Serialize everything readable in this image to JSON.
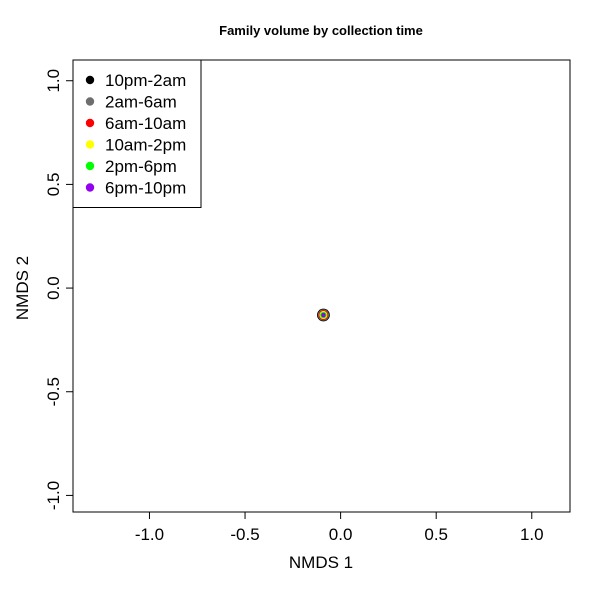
{
  "chart_data": {
    "type": "scatter",
    "title": "Family volume by collection time",
    "xlabel": "NMDS 1",
    "ylabel": "NMDS 2",
    "xlim": [
      -1.4,
      1.2
    ],
    "ylim": [
      -1.08,
      1.1
    ],
    "xticks": [
      -1.0,
      -0.5,
      0.0,
      0.5,
      1.0
    ],
    "xtick_labels": [
      "-1.0",
      "-0.5",
      "0.0",
      "0.5",
      "1.0"
    ],
    "yticks": [
      -1.0,
      -0.5,
      0.0,
      0.5,
      1.0
    ],
    "ytick_labels": [
      "-1.0",
      "-0.5",
      "0.0",
      "0.5",
      "1.0"
    ],
    "grid": false,
    "legend_position": "top-left",
    "series": [
      {
        "name": "10pm-2am",
        "color": "#000000",
        "points": [
          {
            "x": -0.09,
            "y": -0.13
          }
        ]
      },
      {
        "name": "2am-6am",
        "color": "#6e6e6e",
        "points": [
          {
            "x": -0.09,
            "y": -0.13
          }
        ]
      },
      {
        "name": "6am-10am",
        "color": "#ff0000",
        "points": [
          {
            "x": -0.09,
            "y": -0.13
          }
        ]
      },
      {
        "name": "10am-2pm",
        "color": "#ffff00",
        "points": [
          {
            "x": -0.09,
            "y": -0.13
          }
        ]
      },
      {
        "name": "2pm-6pm",
        "color": "#00ff00",
        "points": [
          {
            "x": -0.09,
            "y": -0.13
          }
        ]
      },
      {
        "name": "6pm-10pm",
        "color": "#9400f0",
        "points": [
          {
            "x": -0.09,
            "y": -0.13
          }
        ]
      }
    ]
  }
}
